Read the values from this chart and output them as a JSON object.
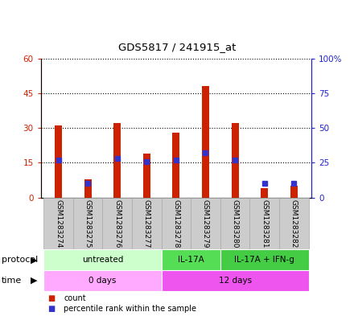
{
  "title": "GDS5817 / 241915_at",
  "samples": [
    "GSM1283274",
    "GSM1283275",
    "GSM1283276",
    "GSM1283277",
    "GSM1283278",
    "GSM1283279",
    "GSM1283280",
    "GSM1283281",
    "GSM1283282"
  ],
  "counts": [
    31,
    8,
    32,
    19,
    28,
    48,
    32,
    4,
    5
  ],
  "percentiles": [
    27,
    10,
    28,
    26,
    27,
    32,
    27,
    10,
    10
  ],
  "ylim_left": [
    0,
    60
  ],
  "ylim_right": [
    0,
    100
  ],
  "yticks_left": [
    0,
    15,
    30,
    45,
    60
  ],
  "yticks_right": [
    0,
    25,
    50,
    75,
    100
  ],
  "ytick_labels_left": [
    "0",
    "15",
    "30",
    "45",
    "60"
  ],
  "ytick_labels_right": [
    "0",
    "25",
    "50",
    "75",
    "100%"
  ],
  "bar_color": "#cc2200",
  "percentile_color": "#3333cc",
  "bar_width": 0.25,
  "protocol_groups": [
    {
      "label": "untreated",
      "start": 0,
      "end": 4,
      "color": "#ccffcc"
    },
    {
      "label": "IL-17A",
      "start": 4,
      "end": 6,
      "color": "#55dd55"
    },
    {
      "label": "IL-17A + IFN-g",
      "start": 6,
      "end": 9,
      "color": "#44cc44"
    }
  ],
  "time_groups": [
    {
      "label": "0 days",
      "start": 0,
      "end": 4,
      "color": "#ffaaff"
    },
    {
      "label": "12 days",
      "start": 4,
      "end": 9,
      "color": "#ee55ee"
    }
  ],
  "protocol_label": "protocol",
  "time_label": "time",
  "legend_count_label": "count",
  "legend_percentile_label": "percentile rank within the sample",
  "left_axis_color": "#cc2200",
  "right_axis_color": "#2222cc",
  "plot_bg_color": "#ffffff",
  "sample_box_color": "#cccccc",
  "sample_box_edge": "#aaaaaa"
}
